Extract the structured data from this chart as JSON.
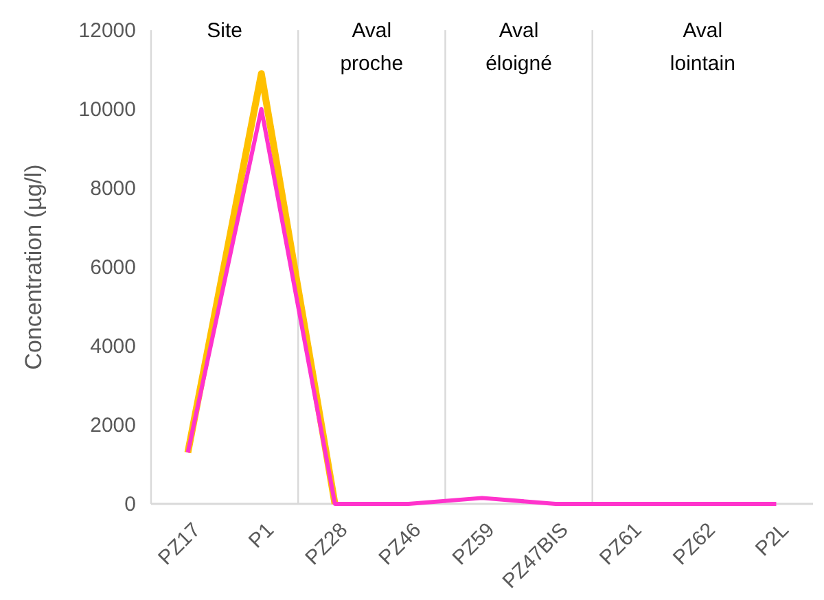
{
  "chart_data": {
    "type": "line",
    "ylabel": "Concentration (µg/l)",
    "categories": [
      "PZ17",
      "P1",
      "PZ28",
      "PZ46",
      "PZ59",
      "PZ47BIS",
      "PZ61",
      "PZ62",
      "P2L"
    ],
    "series": [
      {
        "color": "#ffc000",
        "values": [
          1300,
          10900,
          0,
          null,
          null,
          null,
          null,
          null,
          null
        ]
      },
      {
        "color": "#ff33cc",
        "values": [
          1300,
          10000,
          0,
          0,
          150,
          0,
          0,
          0,
          0
        ]
      }
    ],
    "ylim": [
      0,
      12000
    ],
    "yticks": [
      0,
      2000,
      4000,
      6000,
      8000,
      10000,
      12000
    ],
    "grid": false,
    "marker": "none",
    "line_style": "solid",
    "annotations": [
      "Site",
      "Aval proche",
      "Aval éloigné",
      "Aval lointain"
    ]
  }
}
